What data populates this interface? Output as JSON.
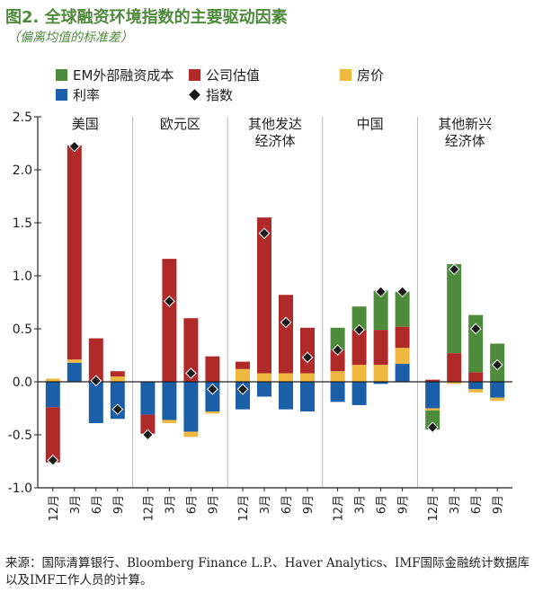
{
  "title": "图2. 全球融资环境指数的主要驱动因素",
  "subtitle": "（偏离均值的标准差）",
  "source": "来源：国际清算银行、Bloomberg Finance L.P.、Haver Analytics、IMF国际金融统计数据库以及IMF工作人员的计算。",
  "colors": {
    "em_external": "#4e8b3a",
    "corporate": "#b12a2a",
    "housing": "#efb840",
    "interest": "#1a5fa8",
    "index": "#1a1a1a"
  },
  "chart_data": {
    "type": "bar",
    "stacked": true,
    "ylim": [
      -1.0,
      2.5
    ],
    "yticks": [
      "-1.0",
      "-0.5",
      "0.0",
      "0.5",
      "1.0",
      "1.5",
      "2.0",
      "2.5"
    ],
    "legend": [
      {
        "key": "em_external",
        "label": "EM外部融资成本",
        "kind": "bar"
      },
      {
        "key": "corporate",
        "label": "公司估值",
        "kind": "bar"
      },
      {
        "key": "housing",
        "label": "房价",
        "kind": "bar"
      },
      {
        "key": "interest",
        "label": "利率",
        "kind": "bar"
      },
      {
        "key": "index",
        "label": "指数",
        "kind": "marker"
      }
    ],
    "categories": [
      "12月",
      "3月",
      "6月",
      "9月"
    ],
    "panels": [
      {
        "name": [
          "美国"
        ],
        "bars": [
          {
            "em_external": 0.0,
            "corporate": -0.52,
            "housing": 0.03,
            "interest": -0.24,
            "index": -0.74
          },
          {
            "em_external": 0.0,
            "corporate": 2.02,
            "housing": 0.03,
            "interest": 0.18,
            "index": 2.22
          },
          {
            "em_external": 0.0,
            "corporate": 0.41,
            "housing": 0.0,
            "interest": -0.39,
            "index": 0.01
          },
          {
            "em_external": 0.0,
            "corporate": 0.05,
            "housing": 0.05,
            "interest": -0.35,
            "index": -0.26
          }
        ]
      },
      {
        "name": [
          "欧元区"
        ],
        "bars": [
          {
            "em_external": 0.0,
            "corporate": -0.18,
            "housing": 0.0,
            "interest": -0.31,
            "index": -0.5
          },
          {
            "em_external": 0.0,
            "corporate": 1.16,
            "housing": -0.03,
            "interest": -0.36,
            "index": 0.76
          },
          {
            "em_external": 0.0,
            "corporate": 0.6,
            "housing": -0.05,
            "interest": -0.47,
            "index": 0.08
          },
          {
            "em_external": 0.0,
            "corporate": 0.24,
            "housing": -0.02,
            "interest": -0.28,
            "index": -0.07
          }
        ]
      },
      {
        "name": [
          "其他发达",
          "经济体"
        ],
        "bars": [
          {
            "em_external": 0.0,
            "corporate": 0.07,
            "housing": 0.12,
            "interest": -0.26,
            "index": -0.07
          },
          {
            "em_external": 0.0,
            "corporate": 1.47,
            "housing": 0.08,
            "interest": -0.14,
            "index": 1.4
          },
          {
            "em_external": 0.0,
            "corporate": 0.74,
            "housing": 0.08,
            "interest": -0.26,
            "index": 0.56
          },
          {
            "em_external": 0.0,
            "corporate": 0.43,
            "housing": 0.08,
            "interest": -0.28,
            "index": 0.23
          }
        ]
      },
      {
        "name": [
          "中国"
        ],
        "bars": [
          {
            "em_external": 0.21,
            "corporate": 0.2,
            "housing": 0.1,
            "interest": -0.19,
            "index": 0.3
          },
          {
            "em_external": 0.22,
            "corporate": 0.33,
            "housing": 0.16,
            "interest": -0.22,
            "index": 0.49
          },
          {
            "em_external": 0.37,
            "corporate": 0.33,
            "housing": 0.16,
            "interest": -0.02,
            "index": 0.85
          },
          {
            "em_external": 0.33,
            "corporate": 0.2,
            "housing": 0.15,
            "interest": 0.17,
            "index": 0.85
          }
        ]
      },
      {
        "name": [
          "其他新兴",
          "经济体"
        ],
        "bars": [
          {
            "em_external": -0.18,
            "corporate": 0.02,
            "housing": -0.02,
            "interest": -0.25,
            "index": -0.43
          },
          {
            "em_external": 0.84,
            "corporate": 0.27,
            "housing": -0.02,
            "interest": 0.0,
            "index": 1.06
          },
          {
            "em_external": 0.54,
            "corporate": 0.09,
            "housing": -0.03,
            "interest": -0.07,
            "index": 0.5
          },
          {
            "em_external": 0.36,
            "corporate": 0.0,
            "housing": -0.03,
            "interest": -0.15,
            "index": 0.16
          }
        ]
      }
    ]
  }
}
